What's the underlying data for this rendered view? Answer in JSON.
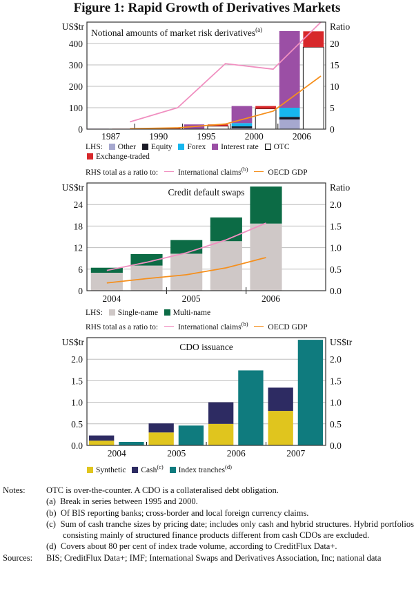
{
  "title": "Figure 1: Rapid Growth of Derivatives Markets",
  "colors": {
    "other": "#a6a8cf",
    "equity": "#1a1a26",
    "forex": "#17b7ef",
    "interest_rate": "#9b4fa5",
    "otc": "#ffffff",
    "exchange_traded": "#d7282b",
    "international_claims": "#f08fc0",
    "oecd_gdp": "#f5901e",
    "single_name": "#cfc8c7",
    "multi_name": "#0c6b45",
    "synthetic": "#e0c51e",
    "cash": "#2d2b62",
    "index_tranches": "#0f7b7e"
  },
  "chart_data": [
    {
      "type": "bar",
      "title": "Notional amounts of market risk derivatives",
      "title_sup": "(a)",
      "ylabel_left": "US$tr",
      "ylabel_right": "Ratio",
      "ylim_left": [
        0,
        500
      ],
      "ylim_right": [
        0,
        25
      ],
      "yticks_left": [
        "0",
        "100",
        "200",
        "300",
        "400"
      ],
      "yticks_right": [
        "0",
        "5",
        "10",
        "15",
        "20"
      ],
      "categories": [
        "1987",
        "1990",
        "1995",
        "2000",
        "2006"
      ],
      "grid": true,
      "bars": [
        {
          "period": "1987",
          "kind": "OTC",
          "other": 0,
          "equity": 0,
          "forex": 0,
          "interest_rate": 2,
          "exchange": 0
        },
        {
          "period": "1987",
          "kind": "Exchange-traded",
          "otc_total": 0,
          "exchange": 2
        },
        {
          "period": "1990",
          "kind": "OTC",
          "other": 0,
          "equity": 0,
          "forex": 0,
          "interest_rate": 3,
          "exchange": 0
        },
        {
          "period": "1990",
          "kind": "Exchange-traded",
          "otc_total": 0,
          "exchange": 5
        },
        {
          "period": "1995",
          "kind": "OTC",
          "other": 0,
          "equity": 0,
          "forex": 0,
          "interest_rate": 22,
          "exchange": 0
        },
        {
          "period": "1995",
          "kind": "Exchange-traded",
          "otc_total": 14,
          "exchange": 8
        },
        {
          "period": "2000",
          "kind": "OTC",
          "other": 5,
          "equity": 8,
          "forex": 15,
          "interest_rate": 80,
          "exchange": 0
        },
        {
          "period": "2000",
          "kind": "Exchange-traded",
          "otc_total": 95,
          "exchange": 13
        },
        {
          "period": "2006",
          "kind": "OTC",
          "other": 45,
          "equity": 12,
          "forex": 43,
          "interest_rate": 358,
          "exchange": 0
        },
        {
          "period": "2006",
          "kind": "Exchange-traded",
          "otc_total": 383,
          "exchange": 74
        }
      ],
      "lines": [
        {
          "name": "International claims",
          "sup": "(b)",
          "axis": "right",
          "points": [
            [
              0.9,
              1.7
            ],
            [
              1.9,
              5.0
            ],
            [
              2.9,
              15.3
            ],
            [
              3.9,
              14.0
            ],
            [
              4.9,
              25.2
            ]
          ]
        },
        {
          "name": "OECD GDP",
          "axis": "right",
          "points": [
            [
              0.9,
              0.1
            ],
            [
              1.9,
              0.3
            ],
            [
              2.9,
              1.2
            ],
            [
              3.9,
              4.2
            ],
            [
              4.9,
              12.4
            ]
          ]
        }
      ],
      "legend": {
        "lhs_label": "LHS:",
        "items": [
          "Other",
          "Equity",
          "Forex",
          "Interest rate",
          "OTC",
          "Exchange-traded"
        ],
        "rhs_label": "RHS total as a ratio to:",
        "rhs_items": [
          "International claims",
          "OECD GDP"
        ],
        "rhs_sup": "(b)"
      }
    },
    {
      "type": "bar",
      "title": "Credit default swaps",
      "ylabel_left": "US$tr",
      "ylabel_right": "Ratio",
      "ylim_left": [
        0,
        30
      ],
      "ylim_right": [
        0,
        2.5
      ],
      "yticks_left": [
        "0",
        "6",
        "12",
        "18",
        "24"
      ],
      "yticks_right": [
        "0.0",
        "0.5",
        "1.0",
        "1.5",
        "2.0"
      ],
      "categories": [
        "2004",
        "2005",
        "2006"
      ],
      "grid": true,
      "bars": [
        {
          "x": 0.25,
          "single_name": 5.0,
          "multi_name": 1.4
        },
        {
          "x": 0.75,
          "single_name": 7.0,
          "multi_name": 3.2
        },
        {
          "x": 1.25,
          "single_name": 10.3,
          "multi_name": 3.8
        },
        {
          "x": 1.75,
          "single_name": 13.8,
          "multi_name": 6.6
        },
        {
          "x": 2.25,
          "single_name": 18.7,
          "multi_name": 10.3
        }
      ],
      "lines": [
        {
          "name": "International claims",
          "axis": "right",
          "points": [
            [
              0.25,
              0.47
            ],
            [
              0.75,
              0.66
            ],
            [
              1.25,
              0.88
            ],
            [
              1.75,
              1.18
            ],
            [
              2.25,
              1.57
            ]
          ]
        },
        {
          "name": "OECD GDP",
          "axis": "right",
          "points": [
            [
              0.25,
              0.18
            ],
            [
              0.75,
              0.28
            ],
            [
              1.25,
              0.37
            ],
            [
              1.75,
              0.53
            ],
            [
              2.25,
              0.77
            ]
          ]
        }
      ],
      "legend": {
        "lhs_label": "LHS:",
        "items": [
          "Single-name",
          "Multi-name"
        ],
        "rhs_label": "RHS total as a ratio to:",
        "rhs_items": [
          "International claims",
          "OECD GDP"
        ],
        "rhs_sup": "(b)"
      }
    },
    {
      "type": "bar",
      "title": "CDO issuance",
      "ylabel_left": "US$tr",
      "ylabel_right": "US$tr",
      "ylim_left": [
        0,
        2.5
      ],
      "ylim_right": [
        0,
        2.5
      ],
      "yticks_left": [
        "0.0",
        "0.5",
        "1.0",
        "1.5",
        "2.0"
      ],
      "yticks_right": [
        "0.0",
        "0.5",
        "1.0",
        "1.5",
        "2.0"
      ],
      "categories": [
        "2004",
        "2005",
        "2006",
        "2007"
      ],
      "grid": true,
      "series": [
        {
          "name": "Synthetic",
          "values": [
            0.11,
            0.3,
            0.5,
            0.8
          ]
        },
        {
          "name": "Cash",
          "sup": "(c)",
          "values": [
            0.12,
            0.21,
            0.5,
            0.54
          ]
        },
        {
          "name": "Index tranches",
          "sup": "(d)",
          "values": [
            0.08,
            0.46,
            1.74,
            2.45
          ]
        }
      ],
      "legend": {
        "items": [
          "Synthetic",
          "Cash",
          "Index tranches"
        ],
        "sups": [
          "",
          "(c)",
          "(d)"
        ]
      }
    }
  ],
  "notes": {
    "label": "Notes:",
    "intro": "OTC is over-the-counter. A CDO is a collateralised debt obligation.",
    "items": [
      "(a)  Break in series between 1995 and 2000.",
      "(b)  Of BIS reporting banks; cross-border and local foreign currency claims.",
      "(c)  Sum of cash tranche sizes by pricing date; includes only cash and hybrid structures. Hybrid portfolios consisting mainly of structured finance products different from cash CDOs are excluded.",
      "(d)  Covers about 80 per cent of index trade volume, according to CreditFlux Data+."
    ],
    "sources_label": "Sources:",
    "sources": "BIS; CreditFlux Data+; IMF; International Swaps and Derivatives Association, Inc; national data"
  }
}
